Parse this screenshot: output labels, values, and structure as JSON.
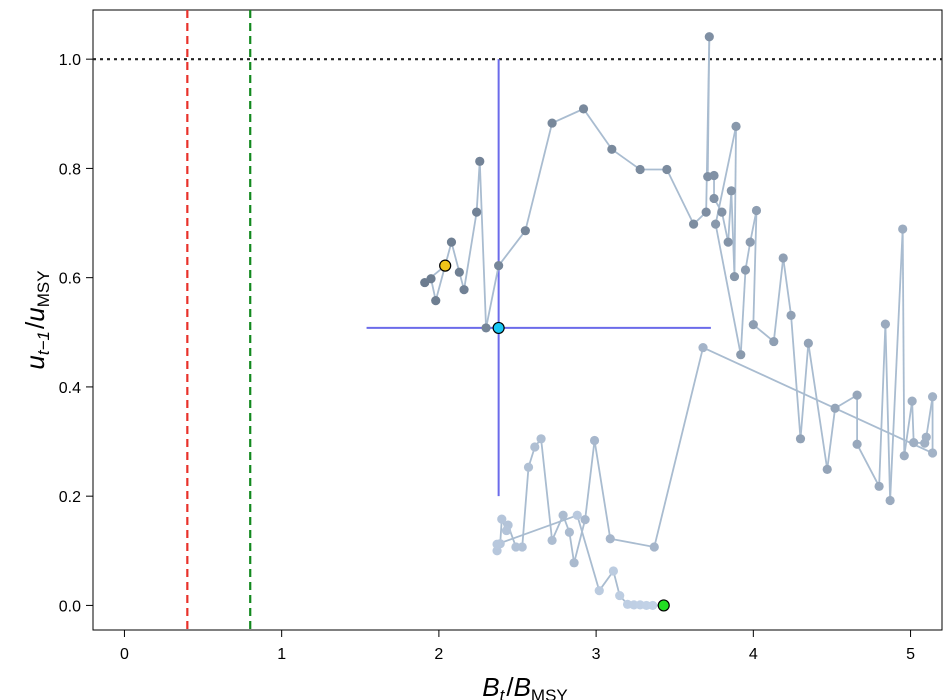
{
  "chart_data": {
    "type": "scatter",
    "xlabel": {
      "main": "B",
      "main_sub": "t",
      "sep": "/",
      "ref": "B",
      "ref_sub": "MSY"
    },
    "ylabel": {
      "main": "u",
      "main_sub": "t−1",
      "sep": "/",
      "ref": "u",
      "ref_sub": "MSY"
    },
    "xlim": [
      -0.2,
      5.2
    ],
    "ylim": [
      -0.045,
      1.09
    ],
    "xticks": [
      0,
      1,
      2,
      3,
      4,
      5
    ],
    "xtick_labels": [
      "0",
      "1",
      "2",
      "3",
      "4",
      "5"
    ],
    "yticks": [
      0.0,
      0.2,
      0.4,
      0.6,
      0.8,
      1.0
    ],
    "ytick_labels": [
      "0.0",
      "0.2",
      "0.4",
      "0.6",
      "0.8",
      "1.0"
    ],
    "grid": false,
    "reference_lines": [
      {
        "orientation": "vertical",
        "value": 0.4,
        "style": "dashed",
        "color": "#e8312a"
      },
      {
        "orientation": "vertical",
        "value": 0.8,
        "style": "dashed",
        "color": "#13891f"
      },
      {
        "orientation": "horizontal",
        "value": 1.0,
        "style": "dotted",
        "color": "#222222"
      }
    ],
    "crosshair": {
      "center": [
        2.38,
        0.508
      ],
      "x_range": [
        1.54,
        3.73
      ],
      "y_range": [
        0.2,
        1.0
      ],
      "color": "#6b6bea",
      "point_fill": "#1ac8f5"
    },
    "trajectory_style": {
      "line_color": "#a9bcd0",
      "point_color_start": "#6b7b8e",
      "point_color_end": "#c3d3e8"
    },
    "trajectory": [
      [
        2.04,
        0.622
      ],
      [
        1.91,
        0.591
      ],
      [
        1.95,
        0.598
      ],
      [
        1.98,
        0.558
      ],
      [
        2.08,
        0.665
      ],
      [
        2.13,
        0.61
      ],
      [
        2.16,
        0.578
      ],
      [
        2.24,
        0.72
      ],
      [
        2.26,
        0.813
      ],
      [
        2.3,
        0.508
      ],
      [
        2.38,
        0.622
      ],
      [
        2.55,
        0.686
      ],
      [
        2.72,
        0.883
      ],
      [
        2.92,
        0.909
      ],
      [
        3.1,
        0.835
      ],
      [
        3.28,
        0.798
      ],
      [
        3.45,
        0.798
      ],
      [
        3.62,
        0.698
      ],
      [
        3.7,
        0.72
      ],
      [
        3.72,
        1.041
      ],
      [
        3.71,
        0.785
      ],
      [
        3.75,
        0.787
      ],
      [
        3.75,
        0.745
      ],
      [
        3.8,
        0.72
      ],
      [
        3.84,
        0.665
      ],
      [
        3.86,
        0.759
      ],
      [
        3.88,
        0.602
      ],
      [
        3.89,
        0.877
      ],
      [
        3.76,
        0.698
      ],
      [
        3.92,
        0.459
      ],
      [
        3.95,
        0.614
      ],
      [
        3.98,
        0.665
      ],
      [
        4.02,
        0.723
      ],
      [
        4.0,
        0.514
      ],
      [
        4.13,
        0.483
      ],
      [
        4.19,
        0.636
      ],
      [
        4.24,
        0.531
      ],
      [
        4.3,
        0.305
      ],
      [
        4.35,
        0.48
      ],
      [
        4.47,
        0.249
      ],
      [
        4.52,
        0.361
      ],
      [
        4.66,
        0.385
      ],
      [
        4.66,
        0.295
      ],
      [
        4.8,
        0.218
      ],
      [
        4.84,
        0.515
      ],
      [
        4.87,
        0.192
      ],
      [
        4.95,
        0.689
      ],
      [
        4.96,
        0.274
      ],
      [
        5.01,
        0.374
      ],
      [
        5.02,
        0.298
      ],
      [
        5.09,
        0.297
      ],
      [
        5.1,
        0.308
      ],
      [
        5.14,
        0.382
      ],
      [
        5.14,
        0.279
      ],
      [
        3.68,
        0.472
      ],
      [
        3.37,
        0.107
      ],
      [
        3.09,
        0.122
      ],
      [
        2.99,
        0.302
      ],
      [
        2.93,
        0.157
      ],
      [
        2.86,
        0.078
      ],
      [
        2.83,
        0.134
      ],
      [
        2.79,
        0.165
      ],
      [
        2.72,
        0.119
      ],
      [
        2.65,
        0.305
      ],
      [
        2.61,
        0.29
      ],
      [
        2.57,
        0.253
      ],
      [
        2.53,
        0.107
      ],
      [
        2.49,
        0.107
      ],
      [
        2.44,
        0.147
      ],
      [
        2.43,
        0.137
      ],
      [
        2.4,
        0.158
      ],
      [
        2.39,
        0.113
      ],
      [
        2.37,
        0.1
      ],
      [
        2.37,
        0.112
      ],
      [
        2.88,
        0.165
      ],
      [
        3.02,
        0.027
      ],
      [
        3.11,
        0.063
      ],
      [
        3.15,
        0.018
      ],
      [
        3.2,
        0.002
      ],
      [
        3.24,
        0.001
      ],
      [
        3.28,
        0.001
      ],
      [
        3.32,
        0.0
      ],
      [
        3.36,
        0.0
      ],
      [
        3.43,
        0.0
      ]
    ],
    "start_point": {
      "x": 2.04,
      "y": 0.622,
      "fill": "#f0c419"
    },
    "end_point": {
      "x": 3.43,
      "y": 0.0,
      "fill": "#22dd22"
    }
  }
}
